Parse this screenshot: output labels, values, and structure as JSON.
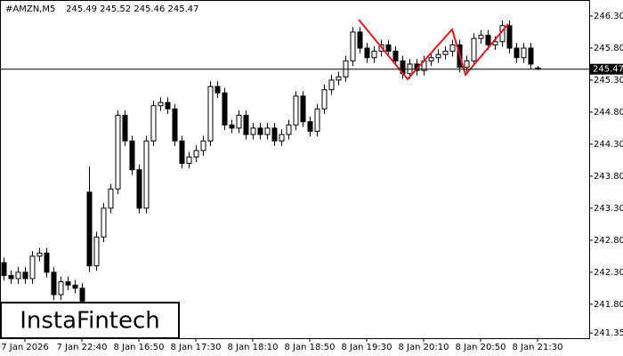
{
  "chart_data": {
    "type": "candlestick",
    "symbol": "#AMZN,M5",
    "ohlc_text": "245.49 245.52 245.46 245.47",
    "watermark": "InstaFintech",
    "last_price": {
      "value": 245.47,
      "label": "245.47"
    },
    "categories": [
      null,
      null,
      null,
      "7 Jan 2026",
      null,
      null,
      null,
      null,
      null,
      null,
      null,
      "7 Jan 22:40",
      null,
      null,
      null,
      null,
      null,
      null,
      null,
      "8 Jan 16:50",
      null,
      null,
      null,
      null,
      null,
      null,
      null,
      "8 Jan 17:30",
      null,
      null,
      null,
      null,
      null,
      null,
      null,
      "8 Jan 18:10",
      null,
      null,
      null,
      null,
      null,
      null,
      null,
      "8 Jan 18:50",
      null,
      null,
      null,
      null,
      null,
      null,
      null,
      "8 Jan 19:30",
      null,
      null,
      null,
      null,
      null,
      null,
      null,
      "8 Jan 20:10",
      null,
      null,
      null,
      null,
      null,
      null,
      null,
      "8 Jan 20:50",
      null,
      null,
      null,
      null,
      null,
      null,
      null,
      "8 Jan 21:30"
    ],
    "open": [
      242.45,
      242.25,
      242.2,
      242.3,
      242.2,
      242.55,
      242.6,
      242.3,
      241.95,
      242.15,
      242.1,
      242.05,
      243.55,
      242.4,
      242.85,
      243.3,
      243.6,
      244.75,
      244.35,
      243.9,
      243.3,
      244.35,
      244.9,
      244.95,
      244.85,
      244.35,
      244.0,
      244.1,
      244.2,
      244.35,
      245.2,
      245.1,
      244.6,
      244.55,
      244.75,
      244.45,
      244.55,
      244.45,
      244.55,
      244.35,
      244.45,
      244.6,
      245.05,
      244.65,
      244.5,
      244.85,
      245.15,
      245.3,
      245.35,
      245.6,
      246.05,
      245.8,
      245.65,
      245.75,
      245.85,
      245.75,
      245.6,
      245.4,
      245.55,
      245.45,
      245.6,
      245.65,
      245.7,
      245.75,
      245.85,
      245.5,
      245.6,
      245.95,
      246.0,
      245.85,
      245.9,
      246.15,
      245.8,
      245.65,
      245.8,
      245.49
    ],
    "high": [
      242.53,
      242.33,
      242.38,
      242.38,
      242.63,
      242.68,
      242.68,
      242.38,
      242.23,
      242.23,
      242.18,
      242.13,
      243.95,
      242.93,
      243.38,
      243.68,
      244.83,
      244.83,
      244.43,
      243.98,
      244.43,
      244.98,
      245.03,
      245.03,
      244.93,
      244.43,
      244.18,
      244.28,
      244.43,
      245.28,
      245.28,
      245.18,
      244.68,
      244.83,
      244.83,
      244.63,
      244.63,
      244.63,
      244.63,
      244.53,
      244.68,
      245.13,
      245.13,
      244.73,
      244.93,
      245.23,
      245.38,
      245.43,
      245.68,
      246.13,
      246.13,
      245.88,
      245.83,
      245.93,
      245.93,
      245.83,
      245.68,
      245.63,
      245.63,
      245.68,
      245.73,
      245.78,
      245.83,
      245.93,
      245.93,
      245.68,
      246.03,
      246.08,
      246.08,
      245.98,
      246.23,
      246.23,
      245.88,
      245.88,
      245.88,
      245.52
    ],
    "low": [
      242.17,
      242.12,
      242.12,
      242.12,
      242.12,
      242.47,
      242.22,
      241.87,
      241.87,
      242.02,
      241.97,
      241.77,
      242.3,
      242.32,
      242.77,
      243.22,
      243.52,
      244.27,
      243.82,
      243.22,
      243.22,
      244.27,
      244.82,
      244.77,
      244.27,
      243.92,
      243.92,
      244.02,
      244.12,
      244.27,
      245.02,
      244.52,
      244.47,
      244.47,
      244.37,
      244.37,
      244.37,
      244.37,
      244.27,
      244.27,
      244.37,
      244.52,
      244.57,
      244.42,
      244.42,
      244.77,
      245.07,
      245.22,
      245.27,
      245.52,
      245.72,
      245.57,
      245.57,
      245.67,
      245.67,
      245.52,
      245.32,
      245.32,
      245.37,
      245.37,
      245.52,
      245.57,
      245.62,
      245.67,
      245.42,
      245.42,
      245.52,
      245.87,
      245.77,
      245.77,
      245.82,
      245.72,
      245.57,
      245.57,
      245.47,
      245.46
    ],
    "close": [
      242.25,
      242.2,
      242.3,
      242.2,
      242.55,
      242.6,
      242.3,
      241.95,
      242.15,
      242.1,
      242.05,
      241.85,
      242.4,
      242.85,
      243.3,
      243.6,
      244.75,
      244.35,
      243.9,
      243.3,
      244.35,
      244.9,
      244.95,
      244.85,
      244.35,
      244.0,
      244.1,
      244.2,
      244.35,
      245.2,
      245.1,
      244.6,
      244.55,
      244.75,
      244.45,
      244.55,
      244.45,
      244.55,
      244.35,
      244.45,
      244.6,
      245.05,
      244.65,
      244.5,
      244.85,
      245.15,
      245.3,
      245.35,
      245.6,
      246.05,
      245.8,
      245.65,
      245.75,
      245.85,
      245.75,
      245.6,
      245.4,
      245.55,
      245.45,
      245.6,
      245.65,
      245.7,
      245.75,
      245.85,
      245.5,
      245.6,
      245.95,
      246.0,
      245.85,
      245.9,
      246.15,
      245.8,
      245.65,
      245.8,
      245.55,
      245.47
    ],
    "ylim": [
      241.27,
      246.55
    ],
    "yticks": [
      {
        "value": 246.3,
        "label": "246.30"
      },
      {
        "value": 245.8,
        "label": "245.80"
      },
      {
        "value": 245.3,
        "label": "245.30"
      },
      {
        "value": 244.8,
        "label": "244.80"
      },
      {
        "value": 244.3,
        "label": "244.30"
      },
      {
        "value": 243.8,
        "label": "243.80"
      },
      {
        "value": 243.3,
        "label": "243.30"
      },
      {
        "value": 242.8,
        "label": "242.80"
      },
      {
        "value": 242.3,
        "label": "242.30"
      },
      {
        "value": 241.8,
        "label": "241.80"
      },
      {
        "value": 241.35,
        "label": "241.35"
      }
    ],
    "up_color": "#ffffff",
    "down_color": "#000000",
    "pattern_color": "#e8191c"
  }
}
